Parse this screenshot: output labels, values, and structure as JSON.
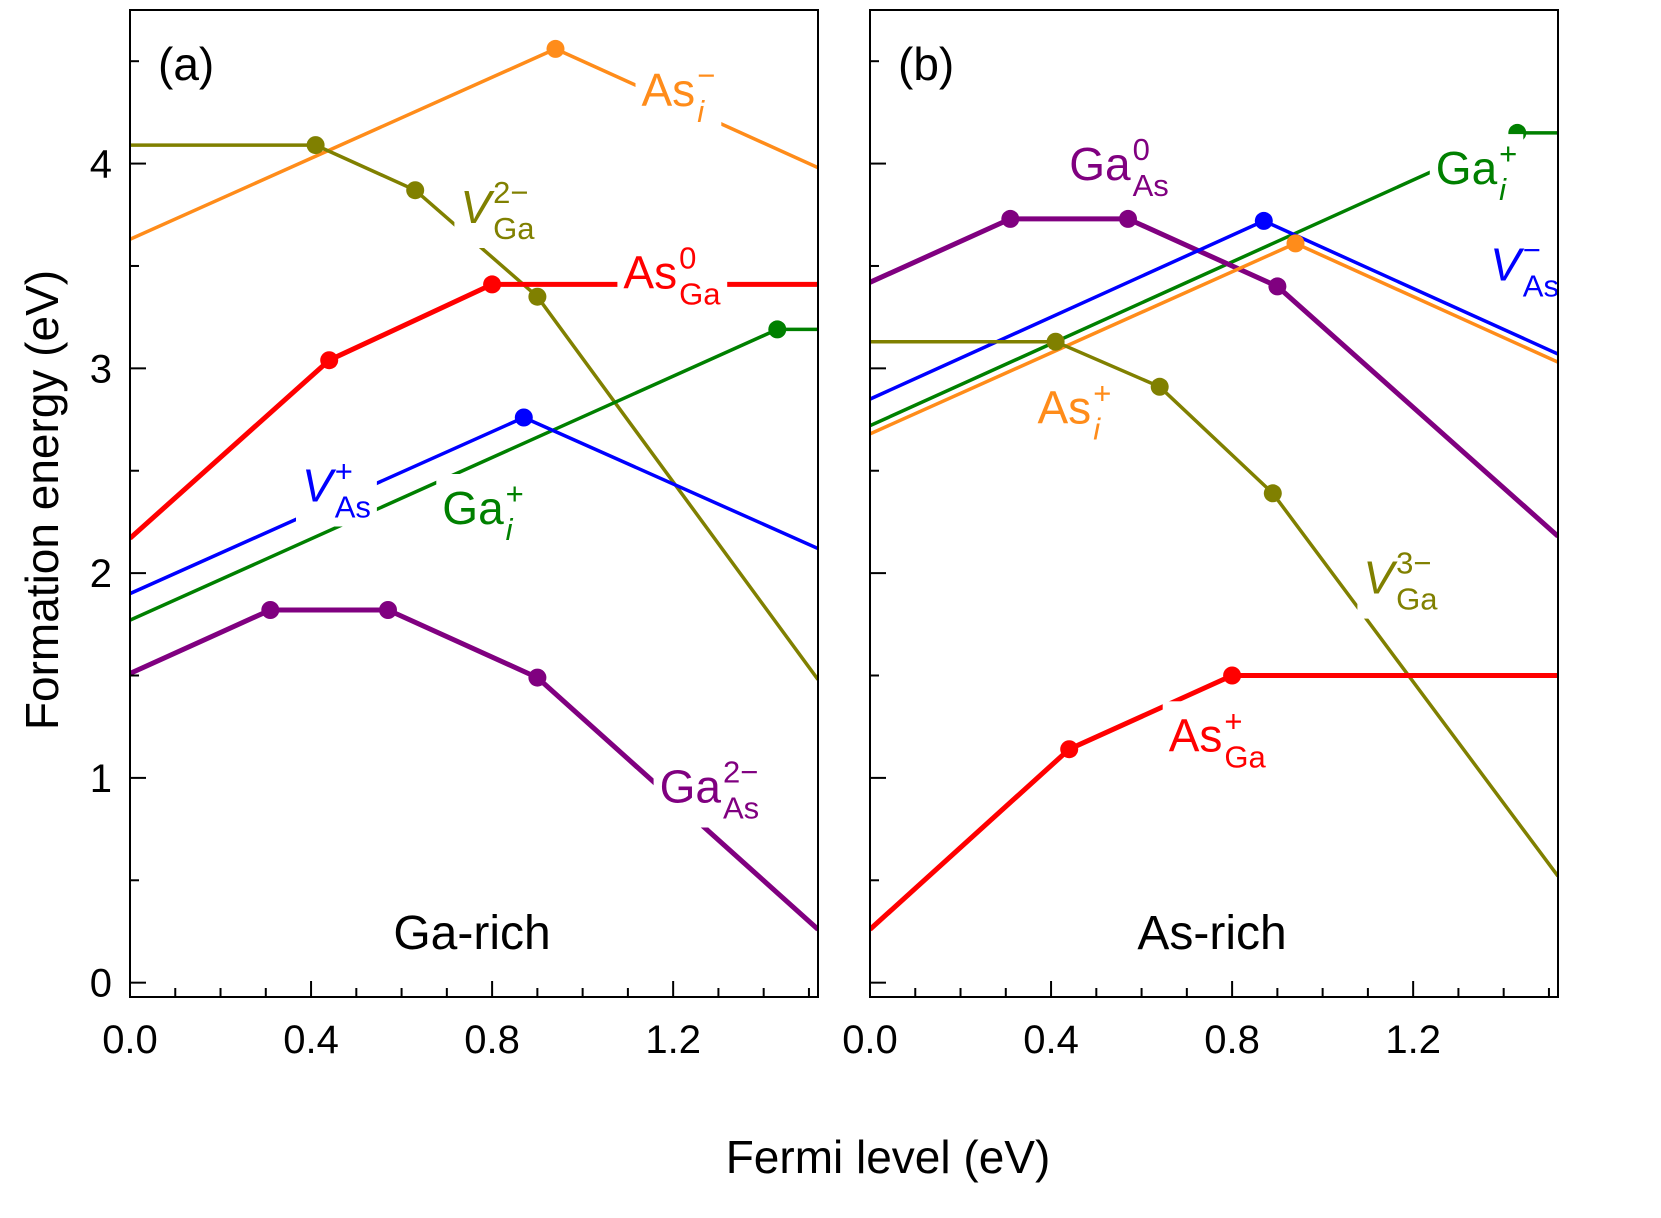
{
  "chart_data": {
    "type": "line",
    "xlabel": "Fermi level (eV)",
    "ylabel": "Formation energy (eV)",
    "xlim": [
      0.0,
      1.52
    ],
    "ylim": [
      -0.07,
      4.75
    ],
    "x_ticks": [
      0.0,
      0.4,
      0.8,
      1.2
    ],
    "x_tick_labels": [
      "0.0",
      "0.4",
      "0.8",
      "1.2"
    ],
    "y_ticks": [
      0,
      1,
      2,
      3,
      4
    ],
    "y_tick_labels": [
      "0",
      "1",
      "2",
      "3",
      "4"
    ],
    "panels": [
      {
        "id": "a",
        "panel_label": "(a)",
        "condition_label": "Ga-rich",
        "series": [
          {
            "name": "As_i",
            "color": "#FF8C1A",
            "width": 3.5,
            "points": [
              [
                0,
                3.63
              ],
              [
                0.94,
                4.56
              ],
              [
                1.52,
                3.98
              ]
            ],
            "markers": [
              [
                0.94,
                4.56
              ]
            ],
            "label": {
              "base": "As",
              "sup": "−",
              "sub": "i",
              "italic_sub": true,
              "italic_base": false,
              "x": 1.13,
              "y": 4.28
            }
          },
          {
            "name": "V_Ga",
            "color": "#808000",
            "width": 3.5,
            "points": [
              [
                0,
                4.09
              ],
              [
                0.41,
                4.09
              ],
              [
                0.63,
                3.87
              ],
              [
                0.9,
                3.35
              ],
              [
                1.52,
                1.48
              ]
            ],
            "markers": [
              [
                0.41,
                4.09
              ],
              [
                0.63,
                3.87
              ],
              [
                0.9,
                3.35
              ]
            ],
            "label": {
              "base": "V",
              "sup": "2−",
              "sub": "Ga",
              "italic_sub": false,
              "italic_base": true,
              "x": 0.73,
              "y": 3.71
            }
          },
          {
            "name": "As_Ga",
            "color": "#FF0000",
            "width": 5,
            "points": [
              [
                0,
                2.17
              ],
              [
                0.44,
                3.04
              ],
              [
                0.8,
                3.41
              ],
              [
                1.52,
                3.41
              ]
            ],
            "markers": [
              [
                0.44,
                3.04
              ],
              [
                0.8,
                3.41
              ]
            ],
            "label": {
              "base": "As",
              "sup": "0",
              "sub": "Ga",
              "italic_sub": false,
              "italic_base": false,
              "x": 1.09,
              "y": 3.39
            }
          },
          {
            "name": "Ga_i",
            "color": "#008000",
            "width": 3.5,
            "points": [
              [
                0,
                1.77
              ],
              [
                1.43,
                3.19
              ],
              [
                1.52,
                3.19
              ]
            ],
            "markers": [
              [
                1.43,
                3.19
              ]
            ],
            "label": {
              "base": "Ga",
              "sup": "+",
              "sub": "i",
              "italic_sub": true,
              "italic_base": false,
              "x": 0.69,
              "y": 2.24
            }
          },
          {
            "name": "V_As",
            "color": "#0000FF",
            "width": 3.5,
            "points": [
              [
                0,
                1.9
              ],
              [
                0.87,
                2.76
              ],
              [
                1.52,
                2.12
              ]
            ],
            "markers": [
              [
                0.87,
                2.76
              ]
            ],
            "label": {
              "base": "V",
              "sup": "+",
              "sub": "As",
              "italic_sub": false,
              "italic_base": true,
              "x": 0.38,
              "y": 2.35
            }
          },
          {
            "name": "Ga_As",
            "color": "#800080",
            "width": 5,
            "points": [
              [
                0,
                1.51
              ],
              [
                0.31,
                1.82
              ],
              [
                0.57,
                1.82
              ],
              [
                0.9,
                1.49
              ],
              [
                1.52,
                0.26
              ]
            ],
            "markers": [
              [
                0.31,
                1.82
              ],
              [
                0.57,
                1.82
              ],
              [
                0.9,
                1.49
              ]
            ],
            "label": {
              "base": "Ga",
              "sup": "2−",
              "sub": "As",
              "italic_sub": false,
              "italic_base": false,
              "x": 1.17,
              "y": 0.88
            }
          }
        ]
      },
      {
        "id": "b",
        "panel_label": "(b)",
        "condition_label": "As-rich",
        "series": [
          {
            "name": "Ga_i",
            "color": "#008000",
            "width": 3.5,
            "points": [
              [
                0,
                2.72
              ],
              [
                1.43,
                4.15
              ],
              [
                1.52,
                4.15
              ]
            ],
            "markers": [
              [
                1.43,
                4.15
              ]
            ],
            "label": {
              "base": "Ga",
              "sup": "+",
              "sub": "i",
              "italic_sub": true,
              "italic_base": false,
              "x": 1.25,
              "y": 3.9
            }
          },
          {
            "name": "Ga_As",
            "color": "#800080",
            "width": 5,
            "points": [
              [
                0,
                3.42
              ],
              [
                0.31,
                3.73
              ],
              [
                0.57,
                3.73
              ],
              [
                0.9,
                3.4
              ],
              [
                1.52,
                2.18
              ]
            ],
            "markers": [
              [
                0.31,
                3.73
              ],
              [
                0.57,
                3.73
              ],
              [
                0.9,
                3.4
              ]
            ],
            "label": {
              "base": "Ga",
              "sup": "0",
              "sub": "As",
              "italic_sub": false,
              "italic_base": false,
              "x": 0.44,
              "y": 3.92
            }
          },
          {
            "name": "V_As",
            "color": "#0000FF",
            "width": 3.5,
            "points": [
              [
                0,
                2.85
              ],
              [
                0.87,
                3.72
              ],
              [
                1.52,
                3.07
              ]
            ],
            "markers": [
              [
                0.87,
                3.72
              ]
            ],
            "label": {
              "base": "V",
              "sup": "−",
              "sub": "As",
              "italic_sub": false,
              "italic_base": true,
              "x": 1.37,
              "y": 3.43
            }
          },
          {
            "name": "As_i",
            "color": "#FF8C1A",
            "width": 3.5,
            "points": [
              [
                0,
                2.68
              ],
              [
                0.94,
                3.61
              ],
              [
                1.52,
                3.03
              ]
            ],
            "markers": [
              [
                0.94,
                3.61
              ]
            ],
            "label": {
              "base": "As",
              "sup": "+",
              "sub": "i",
              "italic_sub": true,
              "italic_base": false,
              "x": 0.37,
              "y": 2.73
            }
          },
          {
            "name": "V_Ga",
            "color": "#808000",
            "width": 3.5,
            "points": [
              [
                0,
                3.13
              ],
              [
                0.41,
                3.13
              ],
              [
                0.64,
                2.91
              ],
              [
                0.89,
                2.39
              ],
              [
                1.52,
                0.52
              ]
            ],
            "markers": [
              [
                0.41,
                3.13
              ],
              [
                0.64,
                2.91
              ],
              [
                0.89,
                2.39
              ]
            ],
            "label": {
              "base": "V",
              "sup": "3−",
              "sub": "Ga",
              "italic_sub": false,
              "italic_base": true,
              "x": 1.09,
              "y": 1.9
            }
          },
          {
            "name": "As_Ga",
            "color": "#FF0000",
            "width": 5,
            "points": [
              [
                0,
                0.26
              ],
              [
                0.44,
                1.14
              ],
              [
                0.8,
                1.5
              ],
              [
                1.52,
                1.5
              ]
            ],
            "markers": [
              [
                0.44,
                1.14
              ],
              [
                0.8,
                1.5
              ]
            ],
            "label": {
              "base": "As",
              "sup": "+",
              "sub": "Ga",
              "italic_sub": false,
              "italic_base": false,
              "x": 0.66,
              "y": 1.13
            }
          }
        ]
      }
    ]
  }
}
